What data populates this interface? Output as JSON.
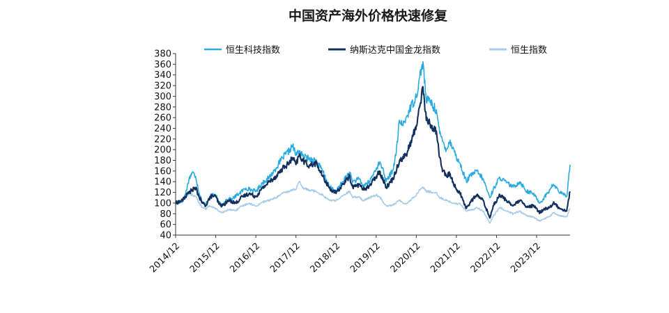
{
  "chart_data": {
    "type": "line",
    "title": "中国资产海外价格快速修复",
    "xlabel": "",
    "ylabel": "",
    "x_ticks": [
      "2014/12",
      "2015/12",
      "2016/12",
      "2017/12",
      "2018/12",
      "2019/12",
      "2020/12",
      "2021/12",
      "2022/12",
      "2023/12"
    ],
    "x_range": [
      "2014/12",
      "2024/10"
    ],
    "ylim": [
      40,
      380
    ],
    "y_ticks": [
      40,
      60,
      80,
      100,
      120,
      140,
      160,
      180,
      200,
      220,
      240,
      260,
      280,
      300,
      320,
      340,
      360,
      380
    ],
    "grid": false,
    "legend_position": "top",
    "series": [
      {
        "name": "恒生科技指数",
        "color": "#29abe2",
        "stroke_width": 1.6,
        "points": [
          [
            "2014-12",
            100
          ],
          [
            "2015-02",
            103
          ],
          [
            "2015-03",
            118
          ],
          [
            "2015-04",
            145
          ],
          [
            "2015-05",
            158
          ],
          [
            "2015-06",
            150
          ],
          [
            "2015-07",
            120
          ],
          [
            "2015-08",
            102
          ],
          [
            "2015-09",
            97
          ],
          [
            "2015-10",
            110
          ],
          [
            "2015-11",
            117
          ],
          [
            "2015-12",
            115
          ],
          [
            "2016-01",
            100
          ],
          [
            "2016-02",
            97
          ],
          [
            "2016-03",
            106
          ],
          [
            "2016-05",
            108
          ],
          [
            "2016-07",
            118
          ],
          [
            "2016-09",
            128
          ],
          [
            "2016-10",
            126
          ],
          [
            "2016-12",
            122
          ],
          [
            "2017-02",
            138
          ],
          [
            "2017-04",
            148
          ],
          [
            "2017-06",
            165
          ],
          [
            "2017-08",
            185
          ],
          [
            "2017-10",
            198
          ],
          [
            "2017-11",
            208
          ],
          [
            "2017-12",
            190
          ],
          [
            "2018-01",
            198
          ],
          [
            "2018-02",
            188
          ],
          [
            "2018-04",
            183
          ],
          [
            "2018-06",
            180
          ],
          [
            "2018-08",
            160
          ],
          [
            "2018-10",
            130
          ],
          [
            "2018-12",
            122
          ],
          [
            "2019-02",
            140
          ],
          [
            "2019-04",
            158
          ],
          [
            "2019-05",
            140
          ],
          [
            "2019-07",
            145
          ],
          [
            "2019-08",
            132
          ],
          [
            "2019-10",
            140
          ],
          [
            "2019-12",
            165
          ],
          [
            "2020-01",
            175
          ],
          [
            "2020-02",
            165
          ],
          [
            "2020-03",
            140
          ],
          [
            "2020-05",
            162
          ],
          [
            "2020-06",
            195
          ],
          [
            "2020-07",
            255
          ],
          [
            "2020-08",
            245
          ],
          [
            "2020-10",
            275
          ],
          [
            "2020-12",
            300
          ],
          [
            "2021-01",
            335
          ],
          [
            "2021-02",
            365
          ],
          [
            "2021-03",
            290
          ],
          [
            "2021-04",
            295
          ],
          [
            "2021-05",
            280
          ],
          [
            "2021-06",
            275
          ],
          [
            "2021-07",
            230
          ],
          [
            "2021-08",
            215
          ],
          [
            "2021-09",
            200
          ],
          [
            "2021-10",
            215
          ],
          [
            "2021-11",
            205
          ],
          [
            "2021-12",
            185
          ],
          [
            "2022-01",
            175
          ],
          [
            "2022-03",
            140
          ],
          [
            "2022-04",
            150
          ],
          [
            "2022-06",
            160
          ],
          [
            "2022-08",
            145
          ],
          [
            "2022-10",
            110
          ],
          [
            "2022-11",
            125
          ],
          [
            "2023-01",
            148
          ],
          [
            "2023-03",
            138
          ],
          [
            "2023-05",
            130
          ],
          [
            "2023-07",
            140
          ],
          [
            "2023-09",
            122
          ],
          [
            "2023-11",
            118
          ],
          [
            "2024-01",
            100
          ],
          [
            "2024-02",
            108
          ],
          [
            "2024-04",
            125
          ],
          [
            "2024-05",
            135
          ],
          [
            "2024-07",
            120
          ],
          [
            "2024-09",
            112
          ],
          [
            "2024-10",
            172
          ]
        ]
      },
      {
        "name": "纳斯达克中国金龙指数",
        "color": "#12305e",
        "stroke_width": 2.1,
        "points": [
          [
            "2014-12",
            100
          ],
          [
            "2015-02",
            105
          ],
          [
            "2015-04",
            120
          ],
          [
            "2015-05",
            125
          ],
          [
            "2015-06",
            128
          ],
          [
            "2015-07",
            112
          ],
          [
            "2015-08",
            100
          ],
          [
            "2015-09",
            95
          ],
          [
            "2015-10",
            108
          ],
          [
            "2015-11",
            114
          ],
          [
            "2015-12",
            112
          ],
          [
            "2016-01",
            98
          ],
          [
            "2016-02",
            95
          ],
          [
            "2016-04",
            105
          ],
          [
            "2016-06",
            100
          ],
          [
            "2016-08",
            112
          ],
          [
            "2016-10",
            118
          ],
          [
            "2016-12",
            112
          ],
          [
            "2017-02",
            128
          ],
          [
            "2017-04",
            140
          ],
          [
            "2017-06",
            150
          ],
          [
            "2017-08",
            165
          ],
          [
            "2017-10",
            175
          ],
          [
            "2017-11",
            185
          ],
          [
            "2017-12",
            172
          ],
          [
            "2018-01",
            190
          ],
          [
            "2018-02",
            180
          ],
          [
            "2018-04",
            170
          ],
          [
            "2018-06",
            175
          ],
          [
            "2018-08",
            150
          ],
          [
            "2018-10",
            128
          ],
          [
            "2018-12",
            118
          ],
          [
            "2019-02",
            135
          ],
          [
            "2019-04",
            150
          ],
          [
            "2019-05",
            130
          ],
          [
            "2019-07",
            135
          ],
          [
            "2019-08",
            125
          ],
          [
            "2019-10",
            132
          ],
          [
            "2019-12",
            150
          ],
          [
            "2020-01",
            160
          ],
          [
            "2020-03",
            130
          ],
          [
            "2020-05",
            145
          ],
          [
            "2020-07",
            180
          ],
          [
            "2020-09",
            190
          ],
          [
            "2020-11",
            225
          ],
          [
            "2020-12",
            245
          ],
          [
            "2021-01",
            280
          ],
          [
            "2021-02",
            318
          ],
          [
            "2021-03",
            255
          ],
          [
            "2021-04",
            250
          ],
          [
            "2021-05",
            240
          ],
          [
            "2021-06",
            235
          ],
          [
            "2021-07",
            185
          ],
          [
            "2021-08",
            160
          ],
          [
            "2021-09",
            150
          ],
          [
            "2021-10",
            155
          ],
          [
            "2021-11",
            140
          ],
          [
            "2021-12",
            125
          ],
          [
            "2022-01",
            120
          ],
          [
            "2022-03",
            90
          ],
          [
            "2022-04",
            100
          ],
          [
            "2022-06",
            115
          ],
          [
            "2022-08",
            105
          ],
          [
            "2022-10",
            72
          ],
          [
            "2022-11",
            95
          ],
          [
            "2023-01",
            115
          ],
          [
            "2023-03",
            105
          ],
          [
            "2023-05",
            95
          ],
          [
            "2023-07",
            105
          ],
          [
            "2023-09",
            92
          ],
          [
            "2023-11",
            95
          ],
          [
            "2024-01",
            82
          ],
          [
            "2024-02",
            88
          ],
          [
            "2024-04",
            92
          ],
          [
            "2024-05",
            100
          ],
          [
            "2024-07",
            90
          ],
          [
            "2024-09",
            85
          ],
          [
            "2024-10",
            122
          ]
        ]
      },
      {
        "name": "恒生指数",
        "color": "#a8cce8",
        "stroke_width": 1.6,
        "points": [
          [
            "2014-12",
            100
          ],
          [
            "2015-02",
            103
          ],
          [
            "2015-04",
            118
          ],
          [
            "2015-05",
            115
          ],
          [
            "2015-06",
            113
          ],
          [
            "2015-07",
            100
          ],
          [
            "2015-08",
            92
          ],
          [
            "2015-09",
            88
          ],
          [
            "2015-10",
            95
          ],
          [
            "2015-11",
            93
          ],
          [
            "2015-12",
            90
          ],
          [
            "2016-01",
            84
          ],
          [
            "2016-02",
            82
          ],
          [
            "2016-04",
            88
          ],
          [
            "2016-06",
            86
          ],
          [
            "2016-08",
            95
          ],
          [
            "2016-10",
            100
          ],
          [
            "2016-12",
            94
          ],
          [
            "2017-02",
            102
          ],
          [
            "2017-04",
            105
          ],
          [
            "2017-06",
            110
          ],
          [
            "2017-08",
            118
          ],
          [
            "2017-10",
            122
          ],
          [
            "2017-11",
            125
          ],
          [
            "2017-12",
            126
          ],
          [
            "2018-01",
            140
          ],
          [
            "2018-02",
            128
          ],
          [
            "2018-04",
            125
          ],
          [
            "2018-06",
            122
          ],
          [
            "2018-08",
            115
          ],
          [
            "2018-10",
            105
          ],
          [
            "2018-12",
            105
          ],
          [
            "2019-02",
            113
          ],
          [
            "2019-04",
            122
          ],
          [
            "2019-05",
            110
          ],
          [
            "2019-07",
            112
          ],
          [
            "2019-08",
            104
          ],
          [
            "2019-10",
            110
          ],
          [
            "2019-12",
            115
          ],
          [
            "2020-01",
            112
          ],
          [
            "2020-03",
            95
          ],
          [
            "2020-05",
            96
          ],
          [
            "2020-07",
            105
          ],
          [
            "2020-09",
            98
          ],
          [
            "2020-11",
            110
          ],
          [
            "2020-12",
            115
          ],
          [
            "2021-01",
            125
          ],
          [
            "2021-02",
            130
          ],
          [
            "2021-03",
            122
          ],
          [
            "2021-05",
            120
          ],
          [
            "2021-06",
            120
          ],
          [
            "2021-07",
            110
          ],
          [
            "2021-09",
            105
          ],
          [
            "2021-11",
            100
          ],
          [
            "2021-12",
            98
          ],
          [
            "2022-01",
            100
          ],
          [
            "2022-03",
            85
          ],
          [
            "2022-05",
            88
          ],
          [
            "2022-06",
            92
          ],
          [
            "2022-08",
            85
          ],
          [
            "2022-10",
            62
          ],
          [
            "2022-11",
            75
          ],
          [
            "2023-01",
            92
          ],
          [
            "2023-03",
            85
          ],
          [
            "2023-05",
            80
          ],
          [
            "2023-07",
            85
          ],
          [
            "2023-09",
            76
          ],
          [
            "2023-11",
            74
          ],
          [
            "2024-01",
            66
          ],
          [
            "2024-02",
            70
          ],
          [
            "2024-04",
            75
          ],
          [
            "2024-05",
            82
          ],
          [
            "2024-07",
            76
          ],
          [
            "2024-09",
            74
          ],
          [
            "2024-10",
            90
          ]
        ]
      }
    ]
  }
}
